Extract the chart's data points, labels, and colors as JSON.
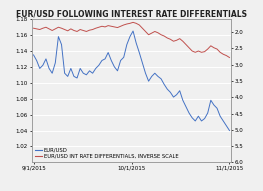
{
  "title": "EUR/USD FOLLOWING INTEREST RATE DIFFERENTIALS",
  "legend_labels": [
    "EUR/USD",
    "EUR/USD INT RATE DIFFERENTIALS, INVERSE SCALE"
  ],
  "line_colors": [
    "#4472c4",
    "#c0504d"
  ],
  "left_ylim": [
    1.0,
    1.18
  ],
  "right_ylim": [
    6.0,
    1.6
  ],
  "xtick_labels": [
    "9/1/2015",
    "10/1/2015",
    "11/1/2015"
  ],
  "left_yticks": [
    1.02,
    1.04,
    1.06,
    1.08,
    1.1,
    1.12,
    1.14,
    1.16,
    1.18
  ],
  "right_yticks": [
    2.0,
    2.5,
    3.0,
    3.5,
    4.0,
    4.5,
    5.0,
    5.5,
    6.0
  ],
  "eurusd": [
    1.135,
    1.128,
    1.118,
    1.122,
    1.13,
    1.118,
    1.112,
    1.125,
    1.158,
    1.148,
    1.112,
    1.108,
    1.118,
    1.108,
    1.106,
    1.118,
    1.112,
    1.11,
    1.115,
    1.112,
    1.118,
    1.122,
    1.128,
    1.13,
    1.138,
    1.128,
    1.12,
    1.115,
    1.128,
    1.132,
    1.148,
    1.158,
    1.165,
    1.15,
    1.138,
    1.125,
    1.112,
    1.102,
    1.108,
    1.112,
    1.108,
    1.105,
    1.098,
    1.092,
    1.088,
    1.082,
    1.085,
    1.09,
    1.078,
    1.07,
    1.062,
    1.056,
    1.052,
    1.058,
    1.052,
    1.055,
    1.062,
    1.078,
    1.072,
    1.068,
    1.058,
    1.052,
    1.046,
    1.04
  ],
  "differential": [
    1.88,
    1.9,
    1.92,
    1.88,
    1.85,
    1.9,
    1.95,
    1.9,
    1.85,
    1.88,
    1.92,
    1.96,
    1.9,
    1.95,
    1.98,
    1.92,
    1.95,
    1.98,
    1.94,
    1.92,
    1.88,
    1.85,
    1.82,
    1.84,
    1.8,
    1.82,
    1.84,
    1.86,
    1.82,
    1.78,
    1.75,
    1.73,
    1.7,
    1.73,
    1.78,
    1.88,
    1.98,
    2.08,
    2.03,
    1.98,
    2.02,
    2.08,
    2.12,
    2.18,
    2.22,
    2.28,
    2.25,
    2.2,
    2.28,
    2.38,
    2.48,
    2.58,
    2.62,
    2.58,
    2.62,
    2.6,
    2.52,
    2.42,
    2.48,
    2.52,
    2.62,
    2.68,
    2.72,
    2.78
  ],
  "background_color": "#f0f0f0",
  "grid_color": "#ffffff",
  "title_fontsize": 5.5,
  "legend_fontsize": 3.8,
  "tick_fontsize": 4.0
}
